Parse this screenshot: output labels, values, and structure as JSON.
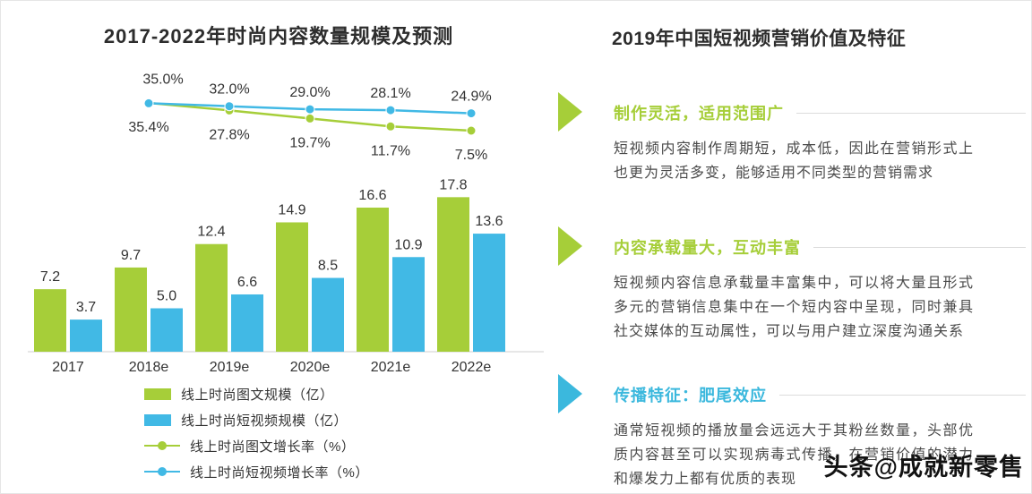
{
  "chart_data": {
    "type": "combo-bar-line",
    "title": "2017-2022年时尚内容数量规模及预测",
    "categories": [
      "2017",
      "2018e",
      "2019e",
      "2020e",
      "2021e",
      "2022e"
    ],
    "bar_series": [
      {
        "name": "线上时尚图文规模（亿）",
        "color": "#a6ce39",
        "values": [
          7.2,
          9.7,
          12.4,
          14.9,
          16.6,
          17.8
        ]
      },
      {
        "name": "线上时尚短视频规模（亿）",
        "color": "#41b9e5",
        "values": [
          3.7,
          5.0,
          6.6,
          8.5,
          10.9,
          13.6
        ]
      }
    ],
    "line_series": [
      {
        "name": "线上时尚图文增长率（%）",
        "color": "#a6ce39",
        "values": [
          null,
          35.4,
          27.8,
          19.7,
          11.7,
          7.5
        ],
        "label_position": "below"
      },
      {
        "name": "线上时尚短视频增长率（%）",
        "color": "#41b9e5",
        "values": [
          null,
          35.0,
          32.0,
          29.0,
          28.1,
          24.9
        ],
        "label_position": "above"
      }
    ],
    "value_labels": true,
    "legend_position": "bottom-left",
    "y_axis_visible": false
  },
  "panel": {
    "title": "2019年中国短视频营销价值及特征",
    "sections": [
      {
        "heading": "制作灵活，适用范围广",
        "color": "#a6ce39",
        "body": "短视频内容制作周期短，成本低，因此在营销形式上也更为灵活多变，能够适用不同类型的营销需求"
      },
      {
        "heading": "内容承载量大，互动丰富",
        "color": "#a6ce39",
        "body": "短视频内容信息承载量丰富集中，可以将大量且形式多元的营销信息集中在一个短内容中呈现，同时兼具社交媒体的互动属性，可以与用户建立深度沟通关系"
      },
      {
        "heading": "传播特征：肥尾效应",
        "color": "#3bb8dd",
        "body": "通常短视频的播放量会远远大于其粉丝数量，头部优质内容甚至可以实现病毒式传播，在营销价值的潜力和爆发力上都有优质的表现"
      }
    ]
  },
  "watermark": {
    "text": "头条@成就新零售"
  }
}
